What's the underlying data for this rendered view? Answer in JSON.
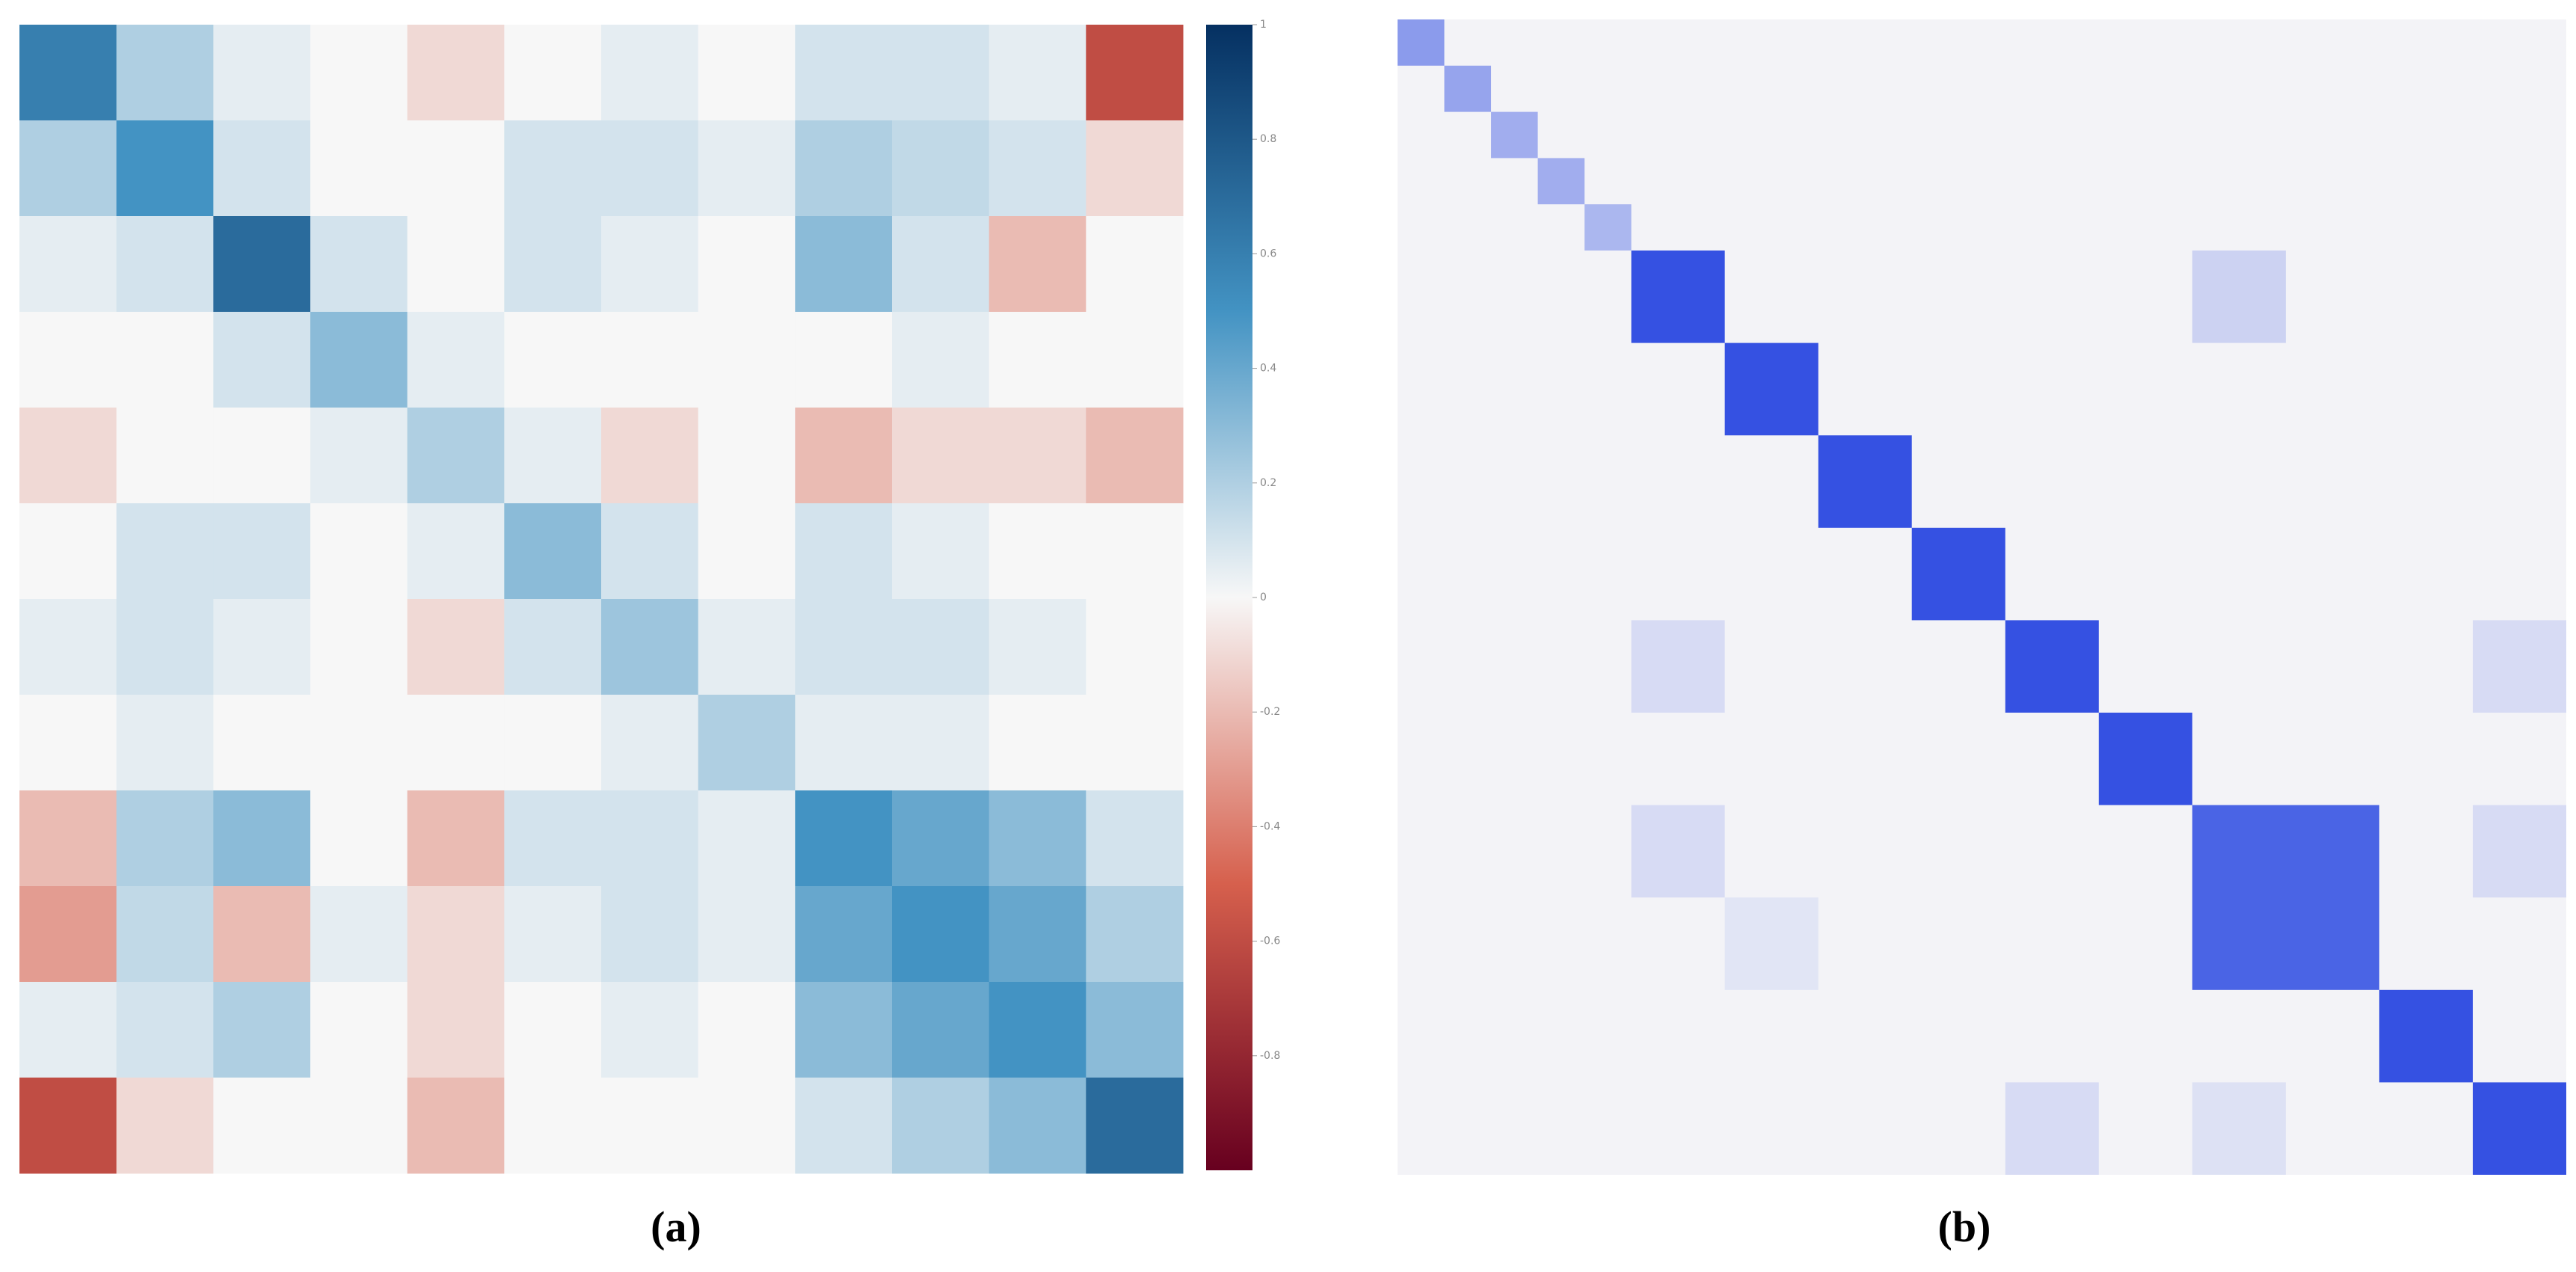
{
  "chart_data": [
    {
      "type": "heatmap",
      "caption": "(a)",
      "values": [
        [
          0.6,
          0.2,
          0.05,
          0,
          -0.1,
          0,
          0.05,
          0,
          0.1,
          0.1,
          0.05,
          -0.6
        ],
        [
          0.2,
          0.5,
          0.1,
          0,
          0,
          0.1,
          0.1,
          0.05,
          0.2,
          0.15,
          0.1,
          -0.1
        ],
        [
          0.05,
          0.1,
          0.7,
          0.1,
          0,
          0.1,
          0.05,
          0,
          0.3,
          0.1,
          -0.2,
          0
        ],
        [
          0,
          0,
          0.1,
          0.3,
          0.05,
          0,
          0,
          0,
          0,
          0.05,
          0,
          0
        ],
        [
          -0.1,
          0,
          0,
          0.05,
          0.2,
          0.05,
          -0.1,
          0,
          -0.2,
          -0.1,
          -0.1,
          -0.2
        ],
        [
          0,
          0.1,
          0.1,
          0,
          0.05,
          0.3,
          0.1,
          0,
          0.1,
          0.05,
          0,
          0
        ],
        [
          0.05,
          0.1,
          0.05,
          0,
          -0.1,
          0.1,
          0.25,
          0.05,
          0.1,
          0.1,
          0.05,
          0
        ],
        [
          0,
          0.05,
          0,
          0,
          0,
          0,
          0.05,
          0.2,
          0.05,
          0.05,
          0,
          0
        ],
        [
          -0.2,
          0.2,
          0.3,
          0,
          -0.2,
          0.1,
          0.1,
          0.05,
          0.5,
          0.4,
          0.3,
          0.1
        ],
        [
          -0.3,
          0.15,
          -0.2,
          0.05,
          -0.1,
          0.05,
          0.1,
          0.05,
          0.4,
          0.5,
          0.4,
          0.2
        ],
        [
          0.05,
          0.1,
          0.2,
          0,
          -0.1,
          0,
          0.05,
          0,
          0.3,
          0.4,
          0.5,
          0.3
        ],
        [
          -0.6,
          -0.1,
          0,
          0,
          -0.2,
          0,
          0,
          0,
          0.1,
          0.2,
          0.3,
          0.7
        ]
      ],
      "colormap": [
        "#67001f",
        "#d6604d",
        "#f7f7f7",
        "#4393c3",
        "#053061"
      ],
      "ylim": [
        -1,
        1
      ],
      "yticks": [
        1,
        0.8,
        0.6,
        0.4,
        0.2,
        0,
        -0.2,
        -0.4,
        -0.6,
        -0.8
      ]
    },
    {
      "type": "blockmap",
      "caption": "(b)",
      "n": 25,
      "background": 0.02,
      "colormap": [
        "#f7f7f7",
        "#1f3fe0"
      ],
      "zlim": [
        0,
        1
      ],
      "blocks": [
        {
          "rows": [
            0,
            1
          ],
          "cols": [
            0,
            1
          ],
          "value": 0.5
        },
        {
          "rows": [
            1,
            2
          ],
          "cols": [
            1,
            2
          ],
          "value": 0.45
        },
        {
          "rows": [
            2,
            3
          ],
          "cols": [
            2,
            3
          ],
          "value": 0.4
        },
        {
          "rows": [
            3,
            4
          ],
          "cols": [
            3,
            4
          ],
          "value": 0.4
        },
        {
          "rows": [
            4,
            5
          ],
          "cols": [
            4,
            5
          ],
          "value": 0.35
        },
        {
          "rows": [
            5,
            7
          ],
          "cols": [
            5,
            7
          ],
          "value": 0.9
        },
        {
          "rows": [
            7,
            9
          ],
          "cols": [
            7,
            9
          ],
          "value": 0.9
        },
        {
          "rows": [
            9,
            11
          ],
          "cols": [
            9,
            11
          ],
          "value": 0.9
        },
        {
          "rows": [
            11,
            13
          ],
          "cols": [
            11,
            13
          ],
          "value": 0.9
        },
        {
          "rows": [
            13,
            15
          ],
          "cols": [
            13,
            15
          ],
          "value": 0.9
        },
        {
          "rows": [
            15,
            17
          ],
          "cols": [
            15,
            17
          ],
          "value": 0.9
        },
        {
          "rows": [
            17,
            21
          ],
          "cols": [
            17,
            21
          ],
          "value": 0.8
        },
        {
          "rows": [
            21,
            23
          ],
          "cols": [
            21,
            23
          ],
          "value": 0.9
        },
        {
          "rows": [
            23,
            25
          ],
          "cols": [
            23,
            25
          ],
          "value": 0.9
        },
        {
          "rows": [
            5,
            7
          ],
          "cols": [
            17,
            19
          ],
          "value": 0.2
        },
        {
          "rows": [
            13,
            15
          ],
          "cols": [
            5,
            7
          ],
          "value": 0.15
        },
        {
          "rows": [
            13,
            15
          ],
          "cols": [
            23,
            25
          ],
          "value": 0.15
        },
        {
          "rows": [
            17,
            19
          ],
          "cols": [
            5,
            7
          ],
          "value": 0.15
        },
        {
          "rows": [
            17,
            19
          ],
          "cols": [
            23,
            25
          ],
          "value": 0.15
        },
        {
          "rows": [
            19,
            21
          ],
          "cols": [
            7,
            9
          ],
          "value": 0.1
        },
        {
          "rows": [
            23,
            25
          ],
          "cols": [
            13,
            15
          ],
          "value": 0.15
        },
        {
          "rows": [
            23,
            25
          ],
          "cols": [
            17,
            19
          ],
          "value": 0.12
        }
      ]
    }
  ]
}
